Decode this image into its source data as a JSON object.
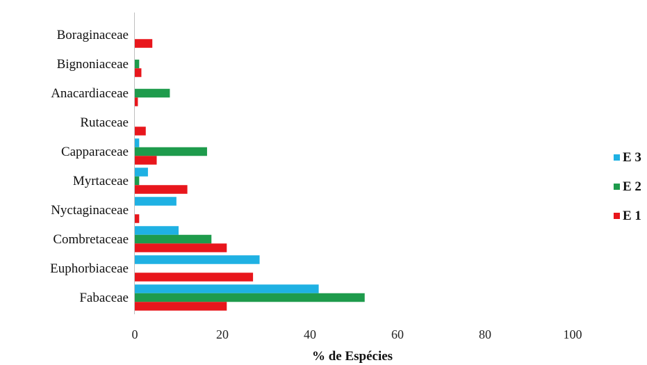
{
  "chart_data": {
    "type": "bar",
    "orientation": "horizontal",
    "categories": [
      "Fabaceae",
      "Euphorbiaceae",
      "Combretaceae",
      "Nyctaginaceae",
      "Myrtaceae",
      "Capparaceae",
      "Rutaceae",
      "Anacardiaceae",
      "Bignoniaceae",
      "Boraginaceae"
    ],
    "series": [
      {
        "name": "E 3",
        "color": "#1fb1e3",
        "values": [
          42,
          28.5,
          10,
          9.5,
          3,
          1,
          0,
          0,
          0,
          0
        ]
      },
      {
        "name": "E 2",
        "color": "#1e9b4c",
        "values": [
          52.5,
          0,
          17.5,
          0,
          1,
          16.5,
          0,
          8,
          1,
          0
        ]
      },
      {
        "name": "E 1",
        "color": "#e8161c",
        "values": [
          21,
          27,
          21,
          1,
          12,
          5,
          2.5,
          0.7,
          1.5,
          4
        ]
      }
    ],
    "xlabel": "% de Espécies",
    "ylabel": "",
    "xlim": [
      0,
      100
    ],
    "xticks": [
      "0",
      "20",
      "40",
      "60",
      "80",
      "100"
    ],
    "grid": false,
    "legend_position": "right",
    "legend_order": [
      "E 3",
      "E 2",
      "E 1"
    ]
  }
}
